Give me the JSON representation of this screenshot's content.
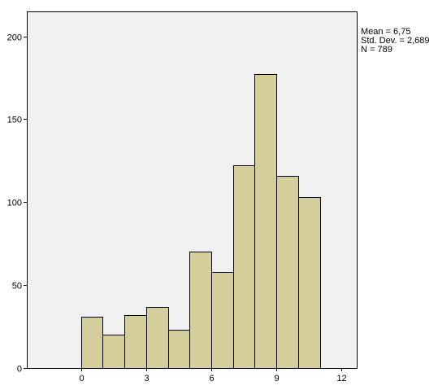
{
  "chart_data": {
    "type": "bar",
    "histogram": true,
    "bins": [
      {
        "x0": 0,
        "x1": 1,
        "count": 31
      },
      {
        "x0": 1,
        "x1": 2,
        "count": 20
      },
      {
        "x0": 2,
        "x1": 3,
        "count": 32
      },
      {
        "x0": 3,
        "x1": 4,
        "count": 37
      },
      {
        "x0": 4,
        "x1": 5,
        "count": 23
      },
      {
        "x0": 5,
        "x1": 6,
        "count": 70
      },
      {
        "x0": 6,
        "x1": 7,
        "count": 58
      },
      {
        "x0": 7,
        "x1": 8,
        "count": 122
      },
      {
        "x0": 8,
        "x1": 9,
        "count": 177
      },
      {
        "x0": 9,
        "x1": 10,
        "count": 116
      },
      {
        "x0": 10,
        "x1": 11,
        "count": 103
      }
    ],
    "xlim": [
      -2.5,
      12.7
    ],
    "ylim": [
      0,
      215
    ],
    "xticks": [
      "0",
      "3",
      "6",
      "9",
      "12"
    ],
    "yticks": [
      "0",
      "50",
      "100",
      "150",
      "200"
    ],
    "grid": false,
    "bar_color": "#d3ce9a",
    "plot_background": "#f0f0f0",
    "stats": {
      "mean": "Mean = 6,75",
      "std_dev": "Std. Dev. = 2,689",
      "n": "N = 789"
    }
  }
}
